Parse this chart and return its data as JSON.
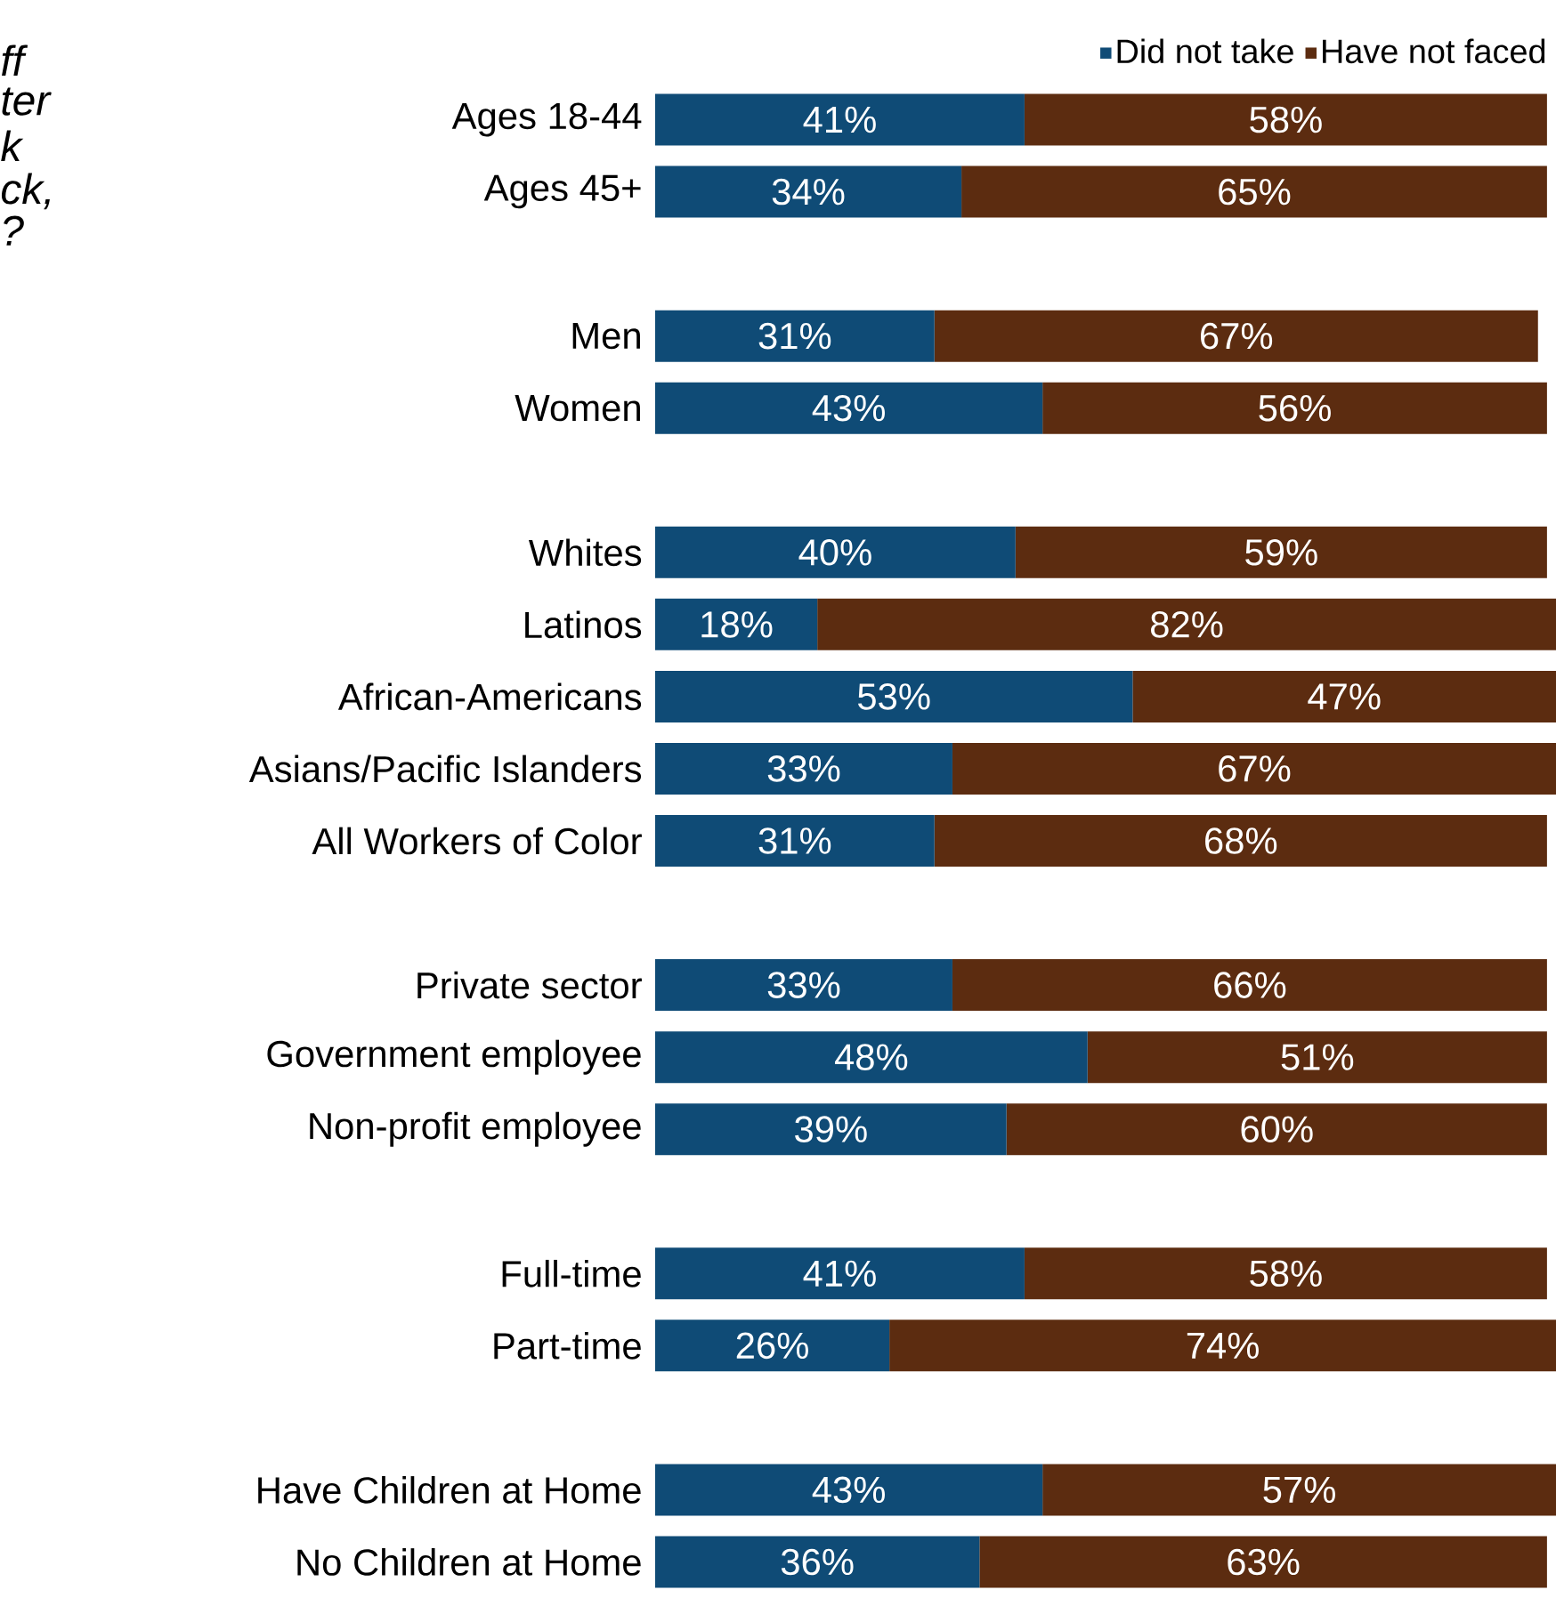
{
  "chart_data": {
    "type": "bar",
    "orientation": "horizontal",
    "stacked": true,
    "legend": "top right",
    "tick_labels": "y",
    "xlim": [
      0,
      100
    ],
    "annotations": [
      "ff",
      "ter",
      "k",
      "ck,",
      "?"
    ],
    "categories": [
      "Ages 18-44",
      "Ages 45+",
      null,
      "Men",
      "Women",
      null,
      "Whites",
      "Latinos",
      "African-Americans",
      "Asians/Pacific Islanders",
      "All Workers of Color",
      null,
      "Private sector",
      "Government employee",
      "Non-profit employee",
      null,
      "Full-time",
      "Part-time",
      null,
      "Have Children at Home",
      "No Children at Home"
    ],
    "series": [
      {
        "name": "Did not take",
        "color": "#0f4b76",
        "values": [
          41,
          34,
          null,
          31,
          43,
          null,
          40,
          18,
          53,
          33,
          31,
          null,
          33,
          48,
          39,
          null,
          41,
          26,
          null,
          43,
          36
        ],
        "value_labels": [
          "41%",
          "34%",
          null,
          "31%",
          "43%",
          null,
          "40%",
          "18%",
          "53%",
          "33%",
          "31%",
          null,
          "33%",
          "48%",
          "39%",
          null,
          "41%",
          "26%",
          null,
          "43%",
          "36%"
        ]
      },
      {
        "name": "Have not faced",
        "color": "#5c2c10",
        "values": [
          58,
          65,
          null,
          67,
          56,
          null,
          59,
          82,
          47,
          67,
          68,
          null,
          66,
          51,
          60,
          null,
          58,
          74,
          null,
          57,
          63
        ],
        "value_labels": [
          "58%",
          "65%",
          null,
          "67%",
          "56%",
          null,
          "59%",
          "82%",
          "47%",
          "67%",
          "68%",
          null,
          "66%",
          "51%",
          "60%",
          null,
          "58%",
          "74%",
          null,
          "57%",
          "63%"
        ]
      }
    ]
  }
}
